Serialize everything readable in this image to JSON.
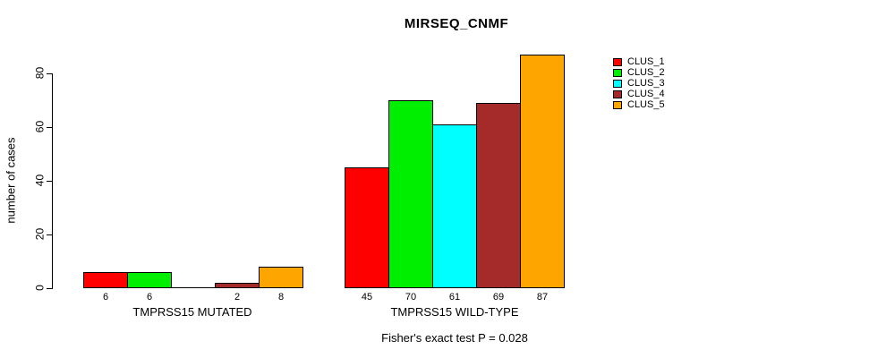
{
  "chart_data": {
    "type": "bar",
    "title": "MIRSEQ_CNMF",
    "ylabel": "number of cases",
    "xlabel": "",
    "ylim": [
      0,
      87
    ],
    "yticks": [
      0,
      20,
      40,
      60,
      80
    ],
    "grid": false,
    "legend_position": "right",
    "categories": [
      "TMPRSS15 MUTATED",
      "TMPRSS15 WILD-TYPE"
    ],
    "groups": [
      {
        "label": "TMPRSS15 MUTATED",
        "values": [
          6,
          6,
          0,
          2,
          8
        ],
        "value_labels": [
          "6",
          "6",
          "",
          "2",
          "8"
        ]
      },
      {
        "label": "TMPRSS15 WILD-TYPE",
        "values": [
          45,
          70,
          61,
          69,
          87
        ],
        "value_labels": [
          "45",
          "70",
          "61",
          "69",
          "87"
        ]
      }
    ],
    "series": [
      {
        "name": "CLUS_1",
        "color": "#FF0000"
      },
      {
        "name": "CLUS_2",
        "color": "#00EE00"
      },
      {
        "name": "CLUS_3",
        "color": "#00FFFF"
      },
      {
        "name": "CLUS_4",
        "color": "#A52A2A"
      },
      {
        "name": "CLUS_5",
        "color": "#FFA500"
      }
    ],
    "annotation": "Fisher's exact test P = 0.028"
  },
  "colors": {
    "axis": "#000000",
    "text": "#000000",
    "background": "#FFFFFF"
  }
}
